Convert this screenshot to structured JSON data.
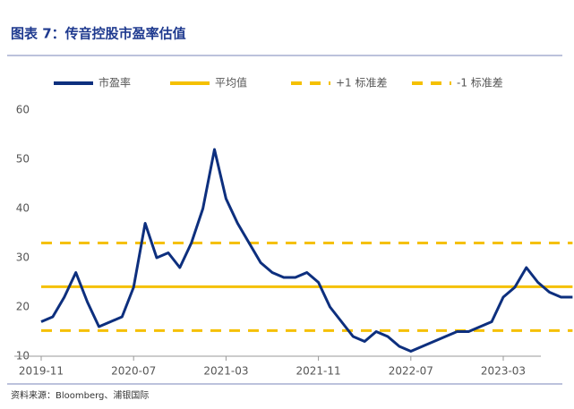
{
  "chart_data": {
    "type": "line",
    "title": "图表 7：传音控股市盈率估值",
    "source": "资料来源：Bloomberg、浦银国际",
    "categories": [
      "2019-11",
      null,
      null,
      null,
      null,
      null,
      null,
      null,
      "2020-07",
      null,
      null,
      null,
      null,
      null,
      null,
      null,
      "2021-03",
      null,
      null,
      null,
      null,
      null,
      null,
      null,
      "2021-11",
      null,
      null,
      null,
      null,
      null,
      null,
      null,
      "2022-07",
      null,
      null,
      null,
      null,
      null,
      null,
      null,
      "2023-03",
      null,
      null,
      null,
      null,
      null,
      null
    ],
    "series": [
      {
        "name": "市盈率",
        "color": "#0d2f7e",
        "style": "solid",
        "values": [
          17,
          18,
          22,
          27,
          21,
          16,
          17,
          18,
          24,
          37,
          30,
          31,
          28,
          33,
          40,
          52,
          42,
          37,
          33,
          29,
          27,
          26,
          26,
          27,
          25,
          20,
          17,
          14,
          13,
          15,
          14,
          12,
          11,
          12,
          13,
          14,
          15,
          15,
          16,
          17,
          22,
          24,
          28,
          25,
          23,
          22,
          22
        ]
      },
      {
        "name": "平均值",
        "color": "#f5c000",
        "style": "solid",
        "values": [
          24.1,
          24.1,
          24.1,
          24.1,
          24.1,
          24.1,
          24.1,
          24.1,
          24.1,
          24.1,
          24.1,
          24.1,
          24.1,
          24.1,
          24.1,
          24.1,
          24.1,
          24.1,
          24.1,
          24.1,
          24.1,
          24.1,
          24.1,
          24.1,
          24.1,
          24.1,
          24.1,
          24.1,
          24.1,
          24.1,
          24.1,
          24.1,
          24.1,
          24.1,
          24.1,
          24.1,
          24.1,
          24.1,
          24.1,
          24.1,
          24.1,
          24.1,
          24.1,
          24.1,
          24.1,
          24.1,
          24.1
        ]
      },
      {
        "name": "+1 标准差",
        "color": "#f5c000",
        "style": "dashed",
        "values": [
          33,
          33,
          33,
          33,
          33,
          33,
          33,
          33,
          33,
          33,
          33,
          33,
          33,
          33,
          33,
          33,
          33,
          33,
          33,
          33,
          33,
          33,
          33,
          33,
          33,
          33,
          33,
          33,
          33,
          33,
          33,
          33,
          33,
          33,
          33,
          33,
          33,
          33,
          33,
          33,
          33,
          33,
          33,
          33,
          33,
          33,
          33
        ]
      },
      {
        "name": "-1 标准差",
        "color": "#f5c000",
        "style": "dashed",
        "values": [
          15.2,
          15.2,
          15.2,
          15.2,
          15.2,
          15.2,
          15.2,
          15.2,
          15.2,
          15.2,
          15.2,
          15.2,
          15.2,
          15.2,
          15.2,
          15.2,
          15.2,
          15.2,
          15.2,
          15.2,
          15.2,
          15.2,
          15.2,
          15.2,
          15.2,
          15.2,
          15.2,
          15.2,
          15.2,
          15.2,
          15.2,
          15.2,
          15.2,
          15.2,
          15.2,
          15.2,
          15.2,
          15.2,
          15.2,
          15.2,
          15.2,
          15.2,
          15.2,
          15.2,
          15.2,
          15.2,
          15.2
        ]
      }
    ],
    "ylim": [
      10,
      60
    ],
    "yticks": [
      10,
      20,
      30,
      40,
      50,
      60
    ],
    "grid": false
  }
}
